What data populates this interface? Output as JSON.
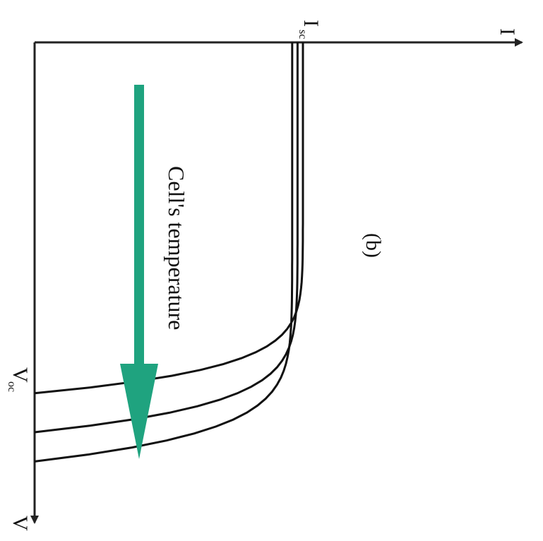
{
  "figure": {
    "rotation_deg": 90,
    "axes": {
      "x_label": "V",
      "y_label": "I",
      "voc_label": "V",
      "voc_subscript": "oc",
      "isc_label": "I",
      "isc_subscript": "sc"
    },
    "arrow_label": "Cell's temperature",
    "panel_label": "(b)",
    "colors": {
      "curves": "#111111",
      "arrow": "#1fa37f",
      "axes": "#222222"
    },
    "curves": [
      {
        "name": "",
        "isc_rel": 0.96,
        "voc_rel": 0.86
      },
      {
        "name": "",
        "isc_rel": 0.98,
        "voc_rel": 0.8
      },
      {
        "name": "",
        "isc_rel": 1.0,
        "voc_rel": 0.72
      }
    ]
  }
}
